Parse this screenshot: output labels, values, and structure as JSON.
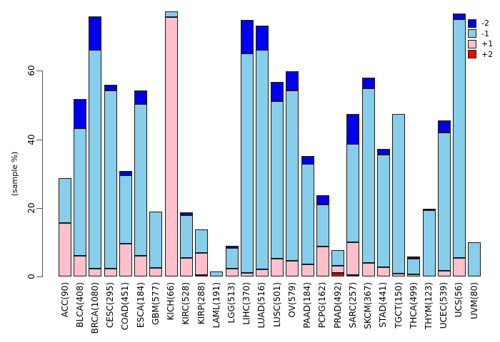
{
  "chart_data": {
    "type": "bar",
    "stacked": true,
    "title": "",
    "xlabel": "",
    "ylabel": "(sample %)",
    "ylim": [
      0,
      80
    ],
    "yticks": [
      0,
      20,
      40,
      60
    ],
    "ytick_labels": [
      "0",
      "20",
      "40",
      "60"
    ],
    "grid": false,
    "legend_position": "top-right",
    "stack_order_bottom_to_top": [
      "+2",
      "+1",
      "-1",
      "-2"
    ],
    "legend": [
      {
        "label": "-2",
        "color": "#0000EE"
      },
      {
        "label": "-1",
        "color": "#87CEEB"
      },
      {
        "label": "+1",
        "color": "#FFC0CB"
      },
      {
        "label": "+2",
        "color": "#FF0000"
      }
    ],
    "categories": [
      "ACC(90)",
      "BLCA(408)",
      "BRCA(1080)",
      "CESC(295)",
      "COAD(451)",
      "ESCA(184)",
      "GBM(577)",
      "KICH(66)",
      "KIRC(528)",
      "KIRP(288)",
      "LAML(191)",
      "LGG(513)",
      "LIHC(370)",
      "LUAD(516)",
      "LUSC(501)",
      "OV(579)",
      "PAAD(184)",
      "PCPG(162)",
      "PRAD(492)",
      "SARC(257)",
      "SKCM(367)",
      "STAD(441)",
      "TGCT(150)",
      "THCA(499)",
      "THYM(123)",
      "UCEC(539)",
      "UCS(56)",
      "UVM(80)"
    ],
    "series": [
      {
        "name": "+2",
        "color": "#FF0000",
        "values": [
          0,
          0,
          0,
          0,
          0,
          0,
          0,
          0,
          0,
          0.5,
          0,
          0,
          0,
          0,
          0,
          0,
          0,
          0,
          1.0,
          0.4,
          0,
          0,
          0,
          0,
          0,
          0,
          0,
          0
        ]
      },
      {
        "name": "+1",
        "color": "#FFC0CB",
        "values": [
          15.5,
          6.1,
          2.3,
          2.3,
          9.6,
          6.0,
          2.4,
          75.6,
          5.5,
          6.3,
          0,
          2.3,
          1.0,
          2.0,
          5.1,
          4.5,
          3.6,
          8.7,
          2.2,
          9.5,
          4.0,
          2.6,
          0.9,
          0.6,
          0,
          1.6,
          5.4,
          0
        ]
      },
      {
        "name": "-1",
        "color": "#87CEEB",
        "values": [
          13.1,
          37.2,
          63.9,
          52.0,
          19.9,
          44.3,
          16.5,
          1.7,
          12.4,
          6.9,
          1.5,
          6.1,
          64.1,
          64.2,
          46.0,
          49.7,
          29.3,
          12.2,
          4.5,
          28.7,
          50.9,
          32.9,
          46.4,
          4.6,
          19.3,
          40.3,
          69.7,
          9.9
        ]
      },
      {
        "name": "-2",
        "color": "#0000EE",
        "values": [
          0,
          8.4,
          9.7,
          1.7,
          1.3,
          4.0,
          0,
          0,
          0.8,
          0,
          0,
          0.5,
          9.8,
          6.9,
          5.6,
          5.6,
          2.2,
          2.8,
          0,
          8.7,
          3.2,
          1.8,
          0,
          0.7,
          0.5,
          3.7,
          1.7,
          0
        ]
      }
    ],
    "bar_totals": [
      28.6,
      51.7,
      75.9,
      56.0,
      30.8,
      54.3,
      18.9,
      77.3,
      18.7,
      13.7,
      1.5,
      8.9,
      74.9,
      73.1,
      56.7,
      59.8,
      35.1,
      23.7,
      7.7,
      47.3,
      58.1,
      37.3,
      47.3,
      5.9,
      19.8,
      45.6,
      76.8,
      9.9
    ]
  }
}
